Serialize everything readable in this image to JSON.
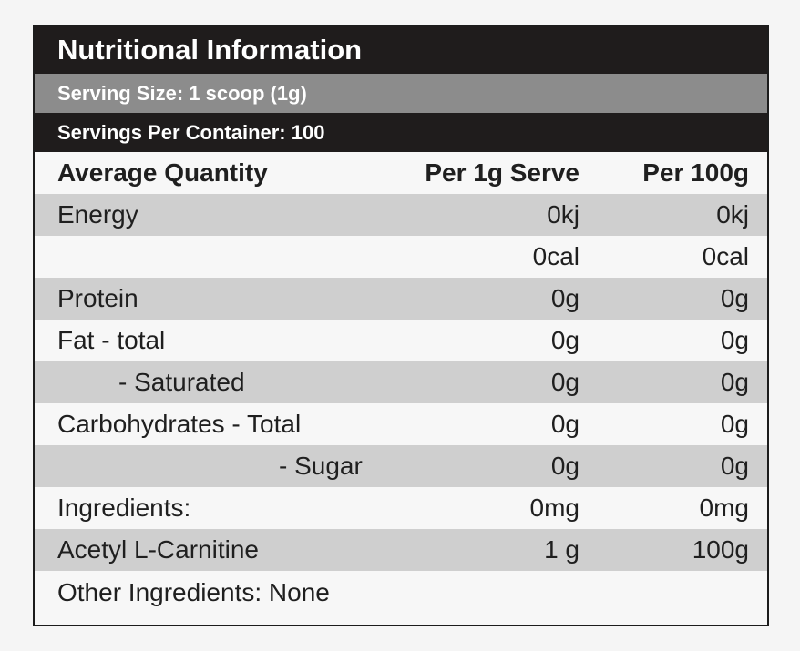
{
  "header": {
    "title": "Nutritional Information",
    "serving_size": "Serving Size: 1 scoop (1g)",
    "servings_per_container": "Servings Per Container: 100"
  },
  "columns": {
    "label": "Average Quantity",
    "per_serve": "Per 1g Serve",
    "per_100g": "Per 100g"
  },
  "rows": [
    {
      "label": "Energy",
      "per_serve": "0kj",
      "per_100g": "0kj"
    },
    {
      "label": "",
      "per_serve": "0cal",
      "per_100g": "0cal"
    },
    {
      "label": "Protein",
      "per_serve": "0g",
      "per_100g": "0g"
    },
    {
      "label": "Fat - total",
      "per_serve": "0g",
      "per_100g": "0g"
    },
    {
      "label": "- Saturated",
      "per_serve": "0g",
      "per_100g": "0g"
    },
    {
      "label": "Carbohydrates - Total",
      "per_serve": "0g",
      "per_100g": "0g"
    },
    {
      "label": "- Sugar",
      "per_serve": "0g",
      "per_100g": "0g"
    },
    {
      "label": "Ingredients:",
      "per_serve": "0mg",
      "per_100g": "0mg"
    },
    {
      "label": "Acetyl L-Carnitine",
      "per_serve": "1 g",
      "per_100g": "100g"
    }
  ],
  "footer": {
    "other_ingredients": "Other Ingredients: None"
  },
  "colors": {
    "header_dark": "#1f1c1c",
    "header_gray": "#8c8c8c",
    "row_shade": "#cfcfcf",
    "row_light": "#f7f7f7"
  }
}
